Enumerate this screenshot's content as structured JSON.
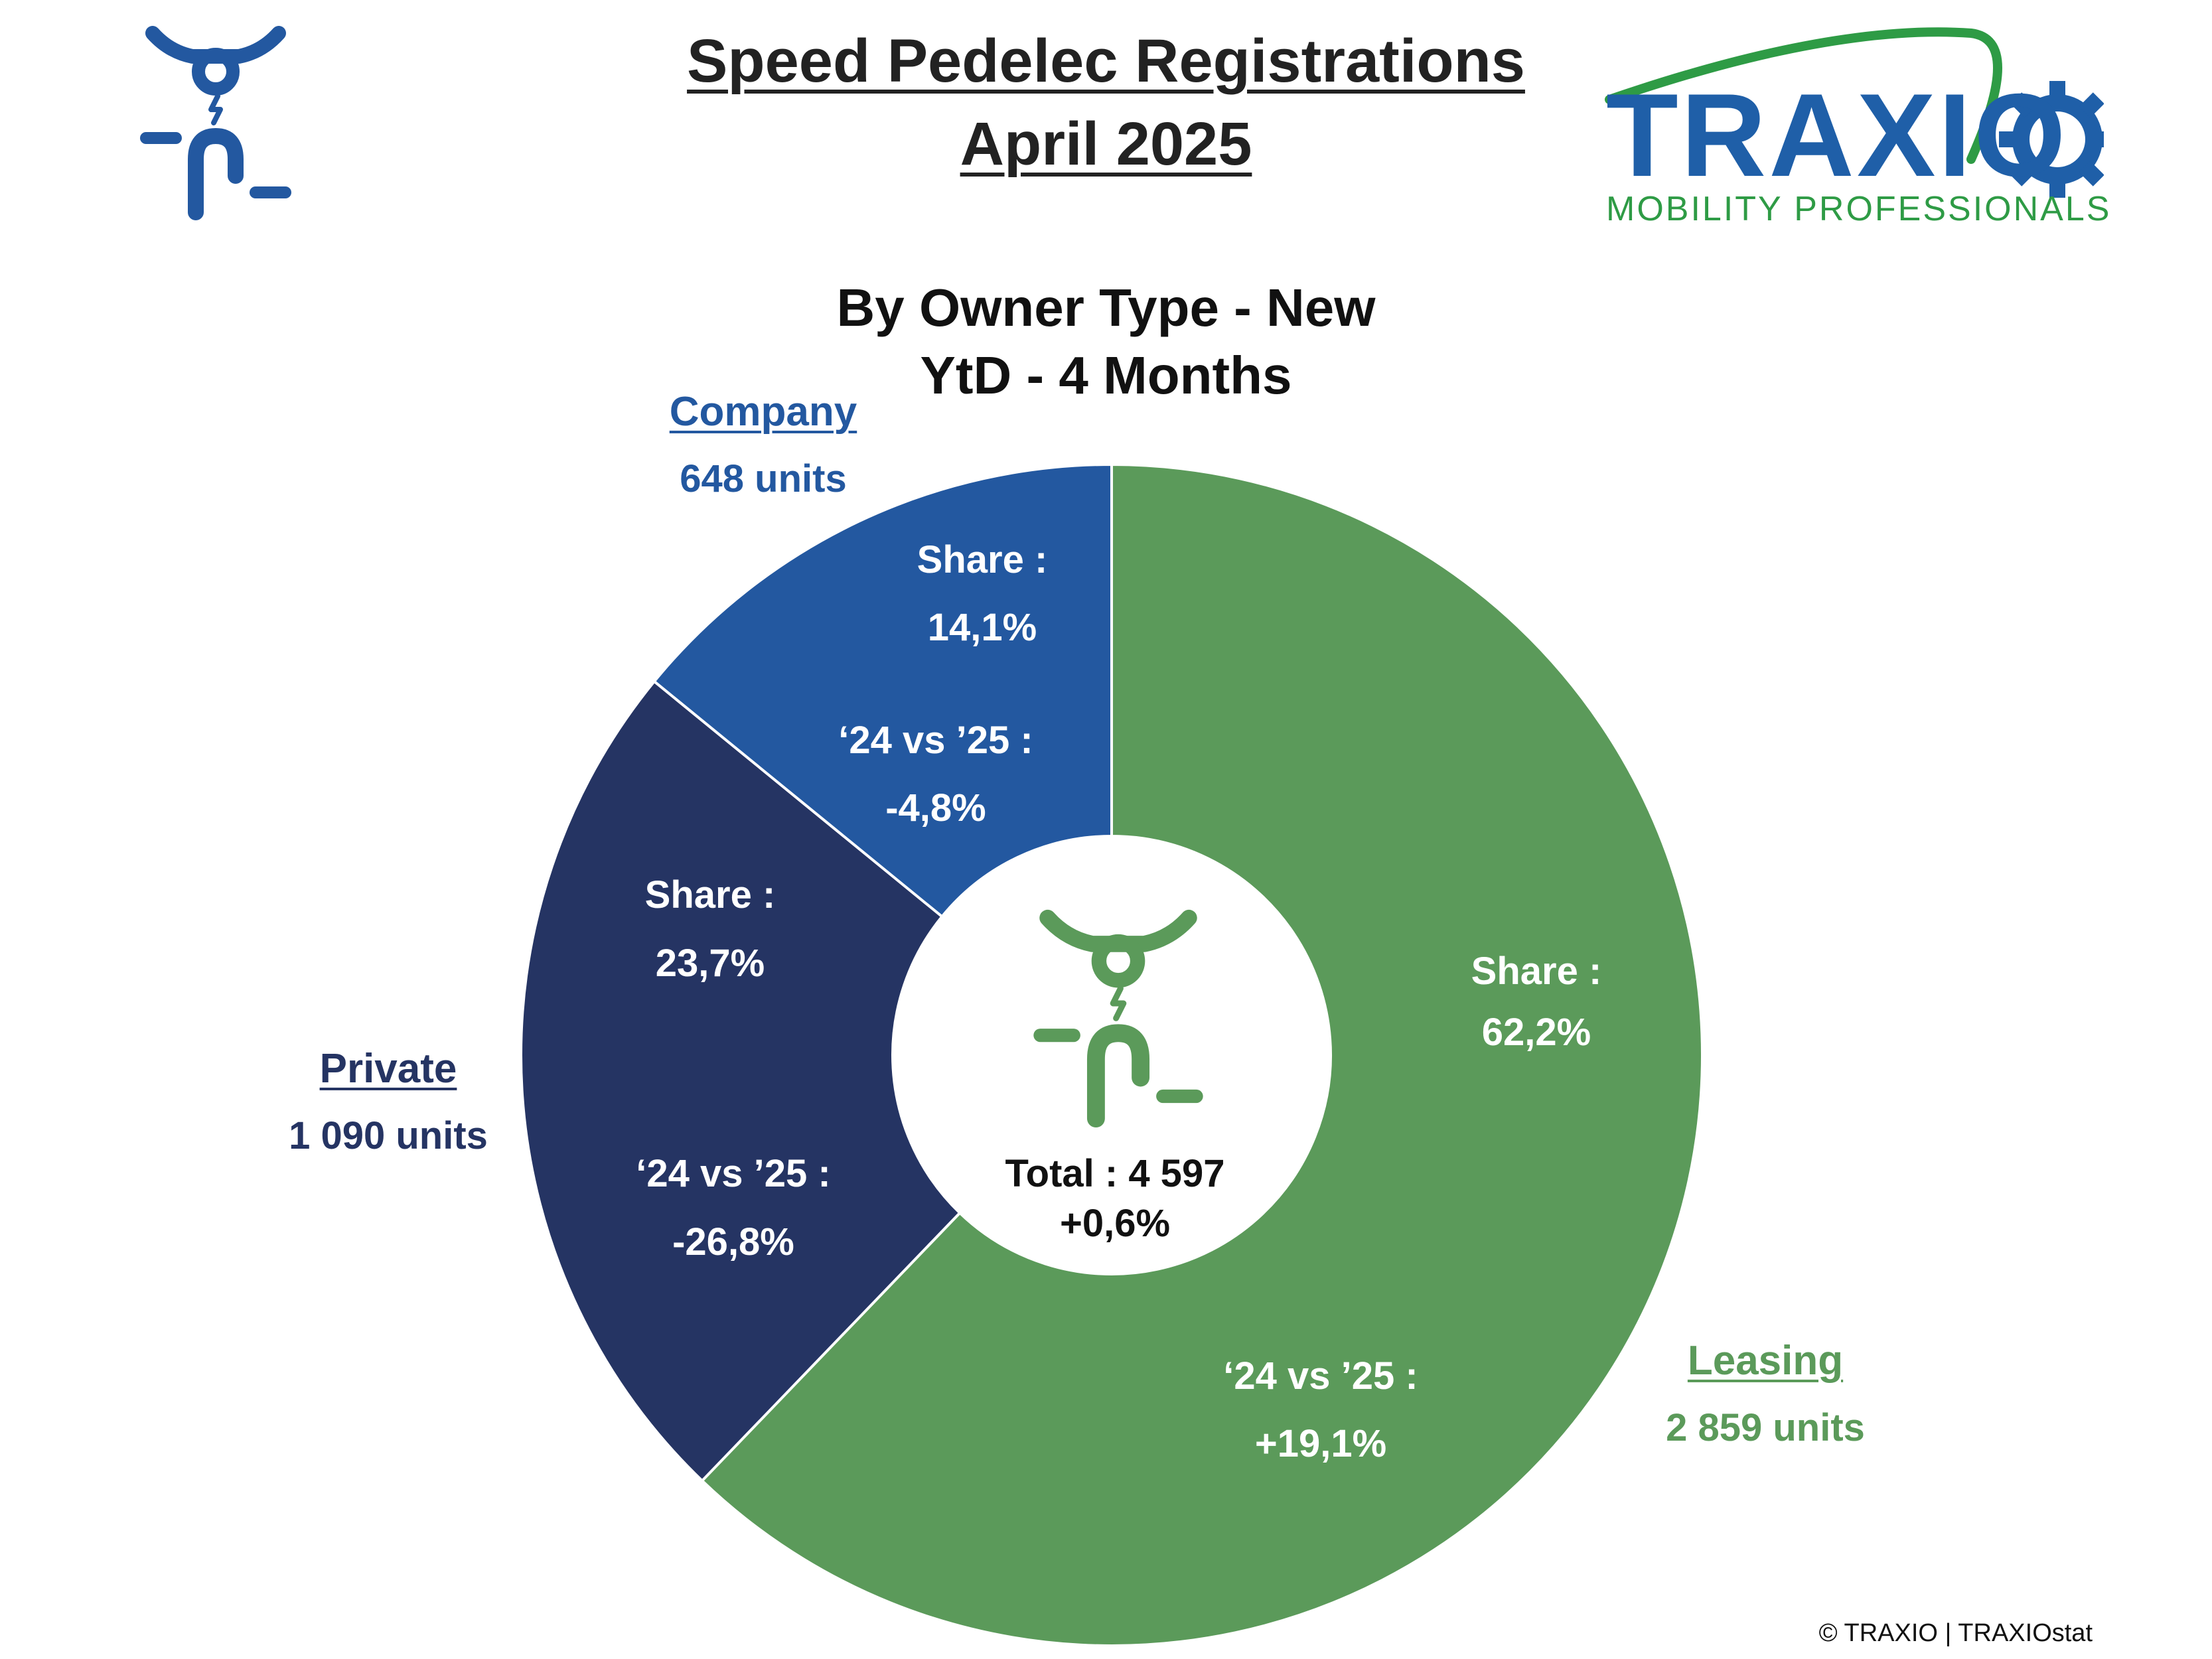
{
  "header": {
    "title_line1": "Speed Pedelec Registrations",
    "title_line2": "April 2025"
  },
  "logo": {
    "brand": "TRAXIO",
    "tagline": "MOBILITY PROFESSIONALS",
    "brand_color": "#1f5fa8",
    "tagline_color": "#2e9b45"
  },
  "chart_data": {
    "type": "pie",
    "title_line1": "By Owner Type - New",
    "title_line2": "YtD - 4 Months",
    "total_label": "Total : 4 597",
    "total_change": "+0,6%",
    "start_angle_deg": 0,
    "direction": "clockwise",
    "slices": [
      {
        "name": "Leasing",
        "units": 2859,
        "units_label": "2 859 units",
        "share": 62.2,
        "share_label": "62,2%",
        "change_label": "+19,1%",
        "color": "#5b9a5a"
      },
      {
        "name": "Private",
        "units": 1090,
        "units_label": "1 090 units",
        "share": 23.7,
        "share_label": "23,7%",
        "change_label": "-26,8%",
        "color": "#253463"
      },
      {
        "name": "Company",
        "units": 648,
        "units_label": "648 units",
        "share": 14.1,
        "share_label": "14,1%",
        "change_label": "-4,8%",
        "color": "#2358a0"
      }
    ],
    "share_prefix": "Share :",
    "change_prefix": "‘24 vs ’25 :"
  },
  "icons": {
    "top_left": "speed-pedelec-icon",
    "center": "speed-pedelec-icon",
    "top_left_color": "#2358a0",
    "center_color": "#5b9a5a"
  },
  "footer": {
    "copyright": "© TRAXIO | TRAXIOstat"
  }
}
